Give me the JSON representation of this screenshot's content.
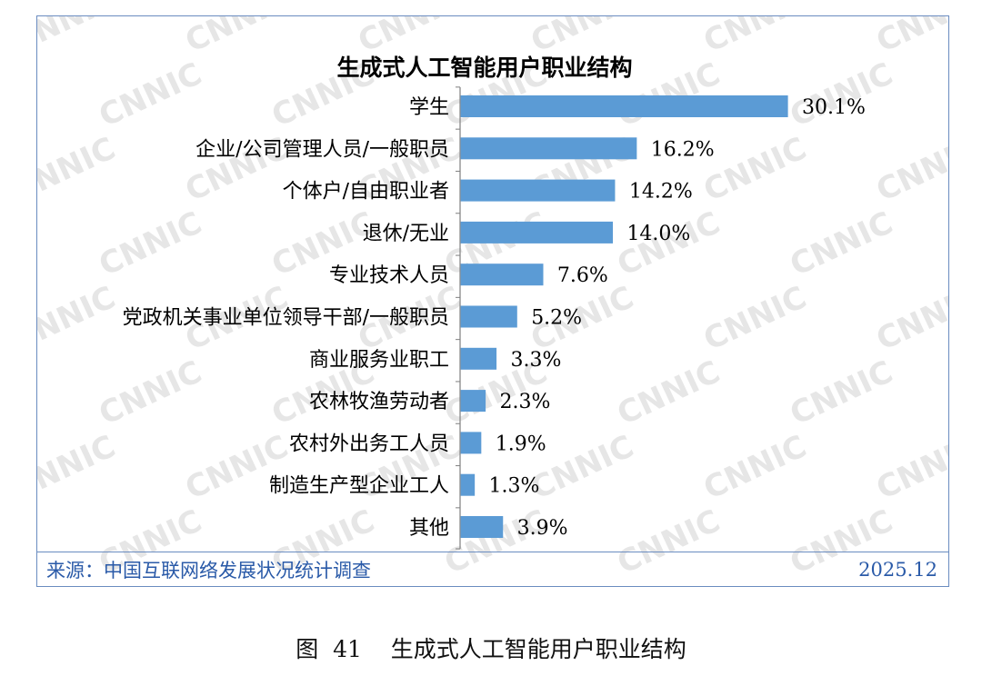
{
  "colors": {
    "bar": "#5b9bd5",
    "frame": "#6a8cc0",
    "source_text": "#2a5aa8",
    "watermark": "#e6e6e6"
  },
  "watermark_text": "CNNIC",
  "source": "来源：中国互联网络发展状况统计调查",
  "date": "2025.12",
  "caption": "图  41    生成式人工智能用户职业结构",
  "chart_data": {
    "type": "bar",
    "orientation": "horizontal",
    "title": "生成式人工智能用户职业结构",
    "categories": [
      "学生",
      "企业/公司管理人员/一般职员",
      "个体户/自由职业者",
      "退休/无业",
      "专业技术人员",
      "党政机关事业单位领导干部/一般职员",
      "商业服务业职工",
      "农林牧渔劳动者",
      "农村外出务工人员",
      "制造生产型企业工人",
      "其他"
    ],
    "values": [
      30.1,
      16.2,
      14.2,
      14.0,
      7.6,
      5.2,
      3.3,
      2.3,
      1.9,
      1.3,
      3.9
    ],
    "labels": [
      "30.1%",
      "16.2%",
      "14.2%",
      "14.0%",
      "7.6%",
      "5.2%",
      "3.3%",
      "2.3%",
      "1.9%",
      "1.3%",
      "3.9%"
    ],
    "unit": "%",
    "grid": false,
    "legend": "none"
  }
}
